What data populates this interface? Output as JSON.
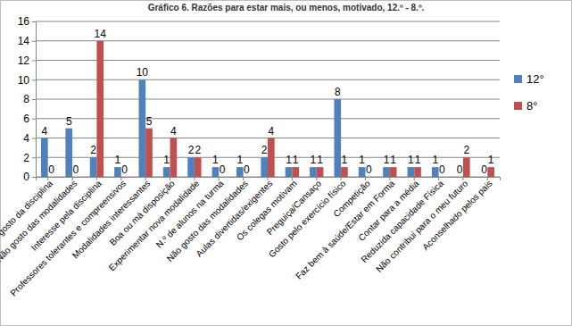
{
  "chart_data": {
    "type": "bar",
    "title": "Gráfico 6. Razões para estar mais, ou menos, motivado, 12.º - 8.º.",
    "categories": [
      "Não gosto da disciplina",
      "Não gosto das modalidades",
      "Interesse pela disciplina",
      "Professores tolerantes e compreensivos",
      "Modalidades interessantes",
      "Boa ou má disposição",
      "Experimentar nova modalidade",
      "N.º de alunos na turma",
      "Não gosto das modalidades",
      "Aulas divertidas/exigentes",
      "Os colegas motivam",
      "Preguiça/Cansaço",
      "Gosto pelo exercício físico",
      "Competição",
      "Faz bem à saúde/Estar em Forma",
      "Contar para a média",
      "Reduzida capacidade Física",
      "Não contribui para o meu futuro",
      "Aconselhado pelos pais"
    ],
    "series": [
      {
        "name": "12°",
        "color": "#4f81bd",
        "values": [
          4,
          5,
          2,
          1,
          10,
          1,
          2,
          1,
          1,
          2,
          1,
          1,
          8,
          1,
          1,
          1,
          1,
          0,
          0
        ]
      },
      {
        "name": "8°",
        "color": "#c0504d",
        "values": [
          0,
          0,
          14,
          0,
          5,
          4,
          2,
          0,
          0,
          4,
          1,
          1,
          1,
          0,
          1,
          1,
          0,
          2,
          1
        ]
      }
    ],
    "ylim": [
      0,
      16
    ],
    "yticks": [
      0,
      2,
      4,
      6,
      8,
      10,
      12,
      14,
      16
    ],
    "grid": true,
    "legend": "right",
    "data_labels": true
  }
}
